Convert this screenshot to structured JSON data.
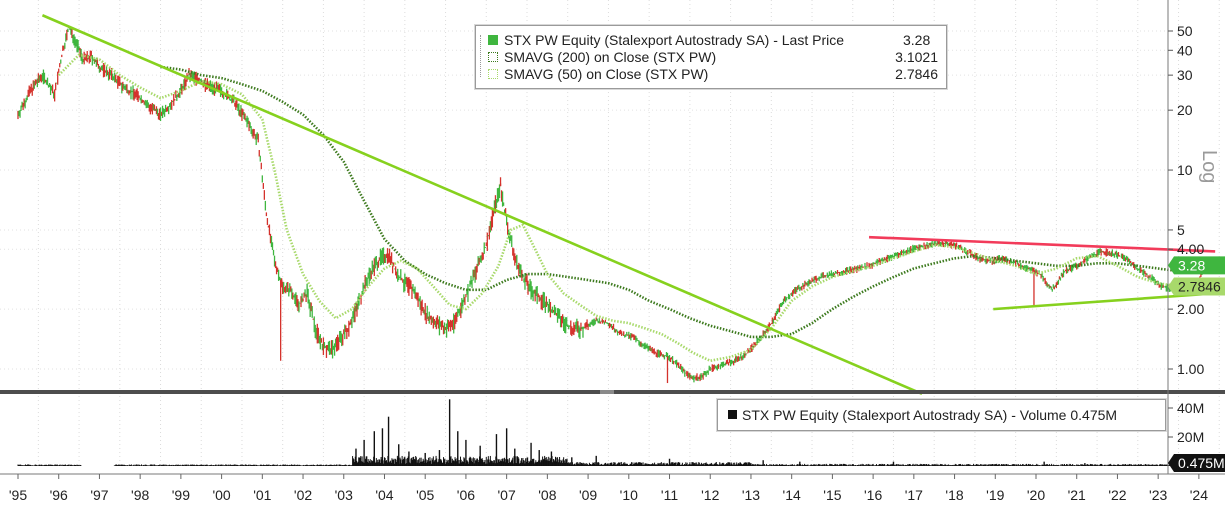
{
  "legend": {
    "price": {
      "label": "STX PW Equity (Stalexport Autostrady SA) - Last Price",
      "value": "3.28",
      "color": "#3fb63f"
    },
    "sma200": {
      "label": "SMAVG (200)  on Close (STX PW)",
      "value": "3.1021",
      "color": "#3d7a1e"
    },
    "sma50": {
      "label": "SMAVG (50)  on Close (STX PW)",
      "value": "2.7846",
      "color": "#a8d96b"
    },
    "volume": {
      "label": "STX PW Equity (Stalexport Autostrady SA) - Volume",
      "value": "0.475M"
    }
  },
  "chart_data": [
    {
      "type": "line",
      "title": "",
      "scale": "log",
      "axis_label": "Log",
      "x_ticks": [
        "'95",
        "'96",
        "'97",
        "'98",
        "'99",
        "'00",
        "'01",
        "'02",
        "'03",
        "'04",
        "'05",
        "'06",
        "'07",
        "'08",
        "'09",
        "'10",
        "'11",
        "'12",
        "'13",
        "'14",
        "'15",
        "'16",
        "'17",
        "'18",
        "'19",
        "'20",
        "'21",
        "'22",
        "'23",
        "'24"
      ],
      "y_ticks": [
        {
          "value": 50,
          "label": "50"
        },
        {
          "value": 40,
          "label": "40"
        },
        {
          "value": 30,
          "label": "30"
        },
        {
          "value": 20,
          "label": "20"
        },
        {
          "value": 10,
          "label": "10"
        },
        {
          "value": 5,
          "label": "5"
        },
        {
          "value": 4,
          "label": "4.00"
        },
        {
          "value": 2,
          "label": "2.00"
        },
        {
          "value": 1,
          "label": "1.00"
        }
      ],
      "ylim": [
        0.8,
        60
      ],
      "xlim": [
        1995.0,
        2024.4
      ],
      "last_price_label": "3.28",
      "sma_label": "2.7846",
      "price_series": {
        "name": "Last Price",
        "x": [
          1995.0,
          1995.3,
          1995.6,
          1995.9,
          1996.1,
          1996.25,
          1996.4,
          1996.6,
          1996.8,
          1997.0,
          1997.3,
          1997.6,
          1997.9,
          1998.2,
          1998.5,
          1998.8,
          1999.0,
          1999.2,
          1999.4,
          1999.6,
          1999.8,
          2000.0,
          2000.3,
          2000.6,
          2000.9,
          2001.1,
          2001.3,
          2001.5,
          2001.7,
          2001.9,
          2002.1,
          2002.3,
          2002.5,
          2002.7,
          2002.9,
          2003.1,
          2003.3,
          2003.5,
          2003.7,
          2003.9,
          2004.1,
          2004.3,
          2004.5,
          2004.7,
          2004.9,
          2005.1,
          2005.3,
          2005.5,
          2005.7,
          2005.9,
          2006.1,
          2006.3,
          2006.5,
          2006.7,
          2006.85,
          2007.0,
          2007.2,
          2007.4,
          2007.6,
          2007.8,
          2008.0,
          2008.3,
          2008.6,
          2008.9,
          2009.2,
          2009.5,
          2009.8,
          2010.1,
          2010.4,
          2010.7,
          2011.0,
          2011.2,
          2011.4,
          2011.6,
          2011.8,
          2012.0,
          2012.3,
          2012.6,
          2012.9,
          2013.2,
          2013.5,
          2013.8,
          2014.1,
          2014.4,
          2014.7,
          2015.0,
          2015.3,
          2015.6,
          2015.9,
          2016.2,
          2016.5,
          2016.8,
          2017.1,
          2017.4,
          2017.7,
          2018.0,
          2018.3,
          2018.6,
          2018.9,
          2019.2,
          2019.5,
          2019.8,
          2020.1,
          2020.4,
          2020.7,
          2021.0,
          2021.3,
          2021.6,
          2021.9,
          2022.2,
          2022.5,
          2022.8,
          2023.1,
          2023.4,
          2023.7,
          2024.0,
          2024.1
        ],
        "y": [
          19,
          25,
          30,
          24,
          40,
          52,
          45,
          36,
          37,
          33,
          30,
          26,
          24,
          21,
          19,
          22,
          25,
          30,
          29,
          27,
          26,
          25,
          22,
          18,
          14,
          6,
          3.5,
          2.6,
          2.5,
          2.1,
          2.4,
          1.6,
          1.3,
          1.25,
          1.4,
          1.6,
          2.0,
          2.6,
          3.2,
          3.6,
          3.8,
          3.0,
          2.7,
          2.5,
          2.1,
          1.8,
          1.7,
          1.6,
          1.7,
          2.1,
          2.6,
          3.3,
          4.2,
          6.5,
          8.3,
          5.5,
          3.6,
          2.9,
          2.5,
          2.3,
          2.1,
          1.8,
          1.6,
          1.6,
          1.75,
          1.7,
          1.5,
          1.45,
          1.3,
          1.2,
          1.15,
          1.05,
          0.95,
          0.9,
          0.92,
          1.0,
          1.05,
          1.1,
          1.2,
          1.4,
          1.7,
          2.2,
          2.5,
          2.7,
          2.9,
          3.0,
          3.1,
          3.2,
          3.3,
          3.5,
          3.7,
          3.9,
          4.1,
          4.2,
          4.3,
          4.2,
          3.9,
          3.6,
          3.5,
          3.6,
          3.4,
          3.2,
          3.0,
          2.5,
          3.1,
          3.3,
          3.6,
          3.9,
          3.8,
          3.6,
          3.2,
          2.9,
          2.6,
          2.5,
          2.6,
          2.7,
          3.28
        ]
      },
      "series": [
        {
          "name": "SMAVG (200)  on Close (STX PW)",
          "x": [
            1998.5,
            1999.0,
            1999.5,
            2000.0,
            2000.5,
            2001.0,
            2001.5,
            2002.0,
            2002.5,
            2003.0,
            2003.5,
            2004.0,
            2004.5,
            2005.0,
            2005.5,
            2006.0,
            2006.5,
            2007.0,
            2007.5,
            2008.0,
            2008.5,
            2009.0,
            2009.5,
            2010.0,
            2010.5,
            2011.0,
            2011.5,
            2012.0,
            2012.5,
            2013.0,
            2013.5,
            2014.0,
            2014.5,
            2015.0,
            2015.5,
            2016.0,
            2016.5,
            2017.0,
            2017.5,
            2018.0,
            2018.5,
            2019.0,
            2019.5,
            2020.0,
            2020.5,
            2021.0,
            2021.5,
            2022.0,
            2022.5,
            2023.0,
            2023.5,
            2024.1
          ],
          "y": [
            33,
            32,
            30,
            29,
            27,
            25,
            22,
            19,
            15,
            11,
            7,
            4.5,
            3.5,
            3.0,
            2.7,
            2.5,
            2.5,
            2.8,
            3.0,
            3.0,
            2.9,
            2.8,
            2.7,
            2.5,
            2.2,
            2.0,
            1.8,
            1.65,
            1.55,
            1.45,
            1.45,
            1.5,
            1.7,
            2.0,
            2.3,
            2.6,
            2.9,
            3.2,
            3.4,
            3.6,
            3.7,
            3.6,
            3.5,
            3.4,
            3.3,
            3.3,
            3.4,
            3.4,
            3.3,
            3.2,
            3.1,
            3.1021
          ]
        },
        {
          "name": "SMAVG (50)  on Close (STX PW)",
          "x": [
            1996.0,
            1996.5,
            1997.0,
            1997.5,
            1998.0,
            1998.5,
            1999.0,
            1999.5,
            2000.0,
            2000.5,
            2001.0,
            2001.3,
            2001.6,
            2002.0,
            2002.4,
            2002.8,
            2003.2,
            2003.6,
            2004.0,
            2004.4,
            2004.8,
            2005.2,
            2005.6,
            2006.0,
            2006.4,
            2006.8,
            2007.1,
            2007.4,
            2007.7,
            2008.0,
            2008.4,
            2008.8,
            2009.2,
            2009.6,
            2010.0,
            2010.4,
            2010.8,
            2011.2,
            2011.6,
            2012.0,
            2012.5,
            2013.0,
            2013.5,
            2014.0,
            2014.5,
            2015.0,
            2015.5,
            2016.0,
            2016.5,
            2017.0,
            2017.5,
            2018.0,
            2018.5,
            2019.0,
            2019.5,
            2020.0,
            2020.5,
            2021.0,
            2021.5,
            2022.0,
            2022.5,
            2023.0,
            2023.5,
            2024.1
          ],
          "y": [
            30,
            38,
            36,
            30,
            26,
            23,
            25,
            28,
            27,
            24,
            18,
            10,
            5,
            3.0,
            2.2,
            1.8,
            2.0,
            2.6,
            3.2,
            3.5,
            3.2,
            2.6,
            2.1,
            2.0,
            2.4,
            3.3,
            5.0,
            5.3,
            4.0,
            3.0,
            2.4,
            2.1,
            1.85,
            1.75,
            1.7,
            1.6,
            1.5,
            1.35,
            1.2,
            1.1,
            1.15,
            1.25,
            1.6,
            2.2,
            2.6,
            2.9,
            3.1,
            3.3,
            3.6,
            3.9,
            4.2,
            4.1,
            3.8,
            3.5,
            3.3,
            3.0,
            3.2,
            3.6,
            3.7,
            3.3,
            2.9,
            2.7,
            2.6,
            2.7846
          ]
        }
      ],
      "trendlines": [
        {
          "name": "long-term downtrend",
          "color": "#86d11e",
          "x": [
            1995.6,
            2017.2
          ],
          "y": [
            60,
            0.75
          ]
        },
        {
          "name": "resistance",
          "color": "#f23b5a",
          "x": [
            2015.9,
            2024.4
          ],
          "y": [
            4.6,
            3.9
          ]
        },
        {
          "name": "support",
          "color": "#86d11e",
          "x": [
            2018.95,
            2024.4
          ],
          "y": [
            2.0,
            2.4
          ]
        }
      ]
    },
    {
      "type": "bar",
      "title": "",
      "y_ticks": [
        {
          "value": 40,
          "label": "40M"
        },
        {
          "value": 20,
          "label": "20M"
        }
      ],
      "ylim": [
        0,
        50
      ],
      "last_value_label": "0.475M",
      "spikes": [
        {
          "x": 2003.3,
          "value": 12
        },
        {
          "x": 2003.5,
          "value": 18
        },
        {
          "x": 2003.75,
          "value": 24
        },
        {
          "x": 2003.95,
          "value": 26
        },
        {
          "x": 2004.1,
          "value": 34
        },
        {
          "x": 2004.35,
          "value": 15
        },
        {
          "x": 2004.6,
          "value": 10
        },
        {
          "x": 2005.0,
          "value": 9
        },
        {
          "x": 2005.35,
          "value": 11
        },
        {
          "x": 2005.6,
          "value": 46
        },
        {
          "x": 2005.8,
          "value": 24
        },
        {
          "x": 2006.0,
          "value": 18
        },
        {
          "x": 2006.35,
          "value": 14
        },
        {
          "x": 2006.75,
          "value": 22
        },
        {
          "x": 2007.0,
          "value": 26
        },
        {
          "x": 2007.2,
          "value": 12
        },
        {
          "x": 2007.6,
          "value": 16
        },
        {
          "x": 2007.8,
          "value": 11
        },
        {
          "x": 2008.1,
          "value": 10
        },
        {
          "x": 2008.6,
          "value": 6
        },
        {
          "x": 2009.2,
          "value": 7
        },
        {
          "x": 2011.0,
          "value": 5
        },
        {
          "x": 2013.3,
          "value": 4
        },
        {
          "x": 2014.2,
          "value": 3
        },
        {
          "x": 2016.5,
          "value": 3
        },
        {
          "x": 2020.2,
          "value": 3
        },
        {
          "x": 2021.2,
          "value": 2
        }
      ]
    }
  ]
}
